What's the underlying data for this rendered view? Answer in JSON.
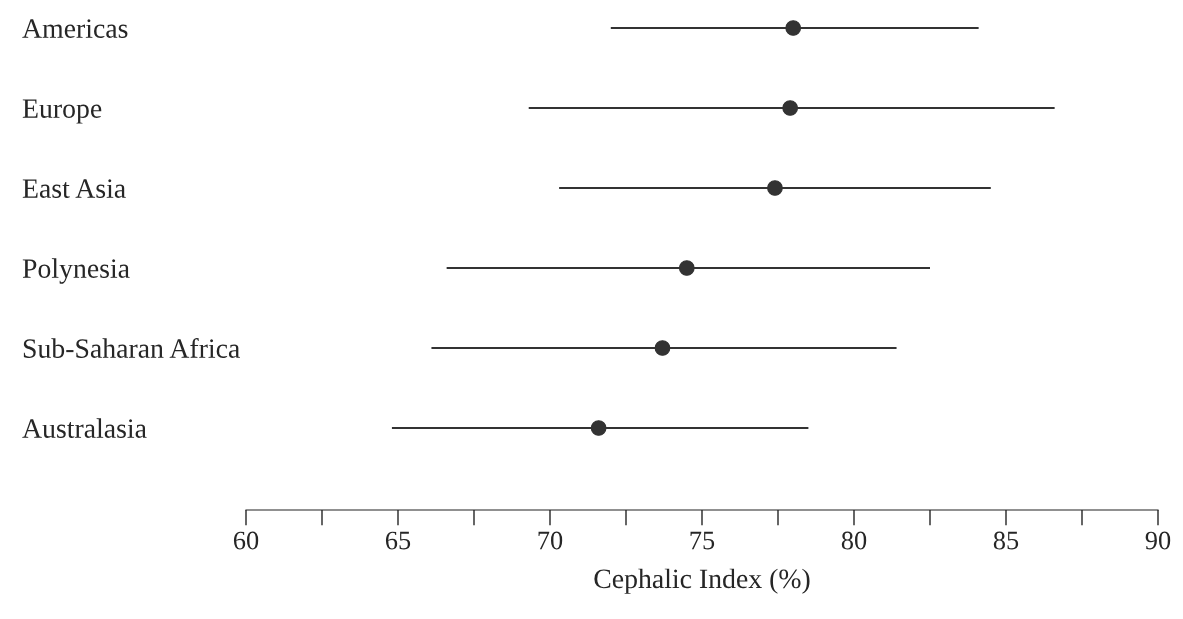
{
  "chart_data": {
    "type": "scatter",
    "orientation": "horizontal",
    "xlabel": "Cephalic Index (%)",
    "categories": [
      "Americas",
      "Europe",
      "East Asia",
      "Polynesia",
      "Sub-Saharan Africa",
      "Australasia"
    ],
    "values": [
      78.0,
      77.9,
      77.4,
      74.5,
      73.7,
      71.6
    ],
    "errors": [
      [
        72.0,
        84.1
      ],
      [
        69.3,
        86.6
      ],
      [
        70.3,
        84.5
      ],
      [
        66.6,
        82.5
      ],
      [
        66.1,
        81.4
      ],
      [
        64.8,
        78.5
      ]
    ],
    "color": "#333333",
    "marker": "circle",
    "grid": false,
    "legend": false,
    "xlim": [
      60,
      90
    ],
    "xticks": [
      60,
      {
        "value": 62.5,
        "label": null
      },
      65,
      {
        "value": 67.5,
        "label": null
      },
      70,
      {
        "value": 72.5,
        "label": null
      },
      75,
      {
        "value": 77.5,
        "label": null
      },
      80,
      {
        "value": 82.5,
        "label": null
      },
      85,
      {
        "value": 87.5,
        "label": null
      },
      90
    ]
  }
}
